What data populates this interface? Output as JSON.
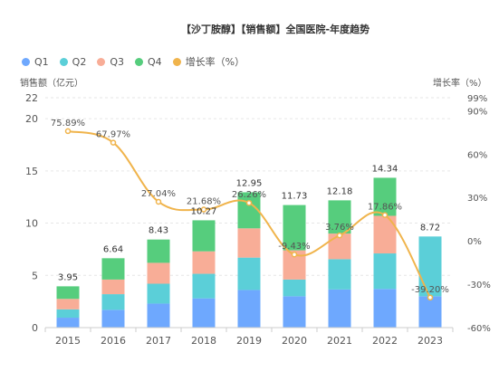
{
  "title": "【沙丁胺醇】【销售额】全国医院-年度趋势",
  "y_left_label": "销售额（亿元）",
  "y_right_label": "增长率（%）",
  "legend": [
    {
      "label": "Q1",
      "color": "#6ea8fe"
    },
    {
      "label": "Q2",
      "color": "#5bcfd8"
    },
    {
      "label": "Q3",
      "color": "#f8ad97"
    },
    {
      "label": "Q4",
      "color": "#56cd7d"
    },
    {
      "label": "增长率（%）",
      "color": "#f0b44c"
    }
  ],
  "chart_data": {
    "type": "bar",
    "stacked": true,
    "title": "【沙丁胺醇】【销售额】全国医院-年度趋势",
    "categories": [
      "2015",
      "2016",
      "2017",
      "2018",
      "2019",
      "2020",
      "2021",
      "2022",
      "2023"
    ],
    "series": [
      {
        "name": "Q1",
        "values": [
          0.95,
          1.7,
          2.3,
          2.8,
          3.6,
          3.0,
          3.65,
          3.7,
          3.0
        ]
      },
      {
        "name": "Q2",
        "values": [
          0.8,
          1.5,
          1.9,
          2.35,
          3.1,
          1.6,
          2.9,
          3.4,
          5.72
        ]
      },
      {
        "name": "Q3",
        "values": [
          1.0,
          1.4,
          2.0,
          2.15,
          2.8,
          2.8,
          2.45,
          3.6,
          0
        ]
      },
      {
        "name": "Q4",
        "values": [
          1.2,
          2.04,
          2.23,
          2.97,
          3.45,
          4.33,
          3.18,
          3.64,
          0
        ]
      }
    ],
    "totals": [
      3.95,
      6.64,
      8.43,
      10.27,
      12.95,
      11.73,
      12.18,
      14.34,
      8.72
    ],
    "totals_labels": [
      "3.95",
      "6.64",
      "8.43",
      "10.27",
      "12.95",
      "11.73",
      "12.18",
      "14.34",
      "8.72"
    ],
    "growth_series": {
      "name": "增长率（%）",
      "values": [
        75.89,
        67.97,
        27.04,
        21.68,
        26.26,
        -9.43,
        3.76,
        17.86,
        -39.2
      ],
      "labels": [
        "75.89%",
        "67.97%",
        "27.04%",
        "21.68%",
        "26.26%",
        "-9.43%",
        "3.76%",
        "17.86%",
        "-39.20%"
      ]
    },
    "ylabel_left": "销售额（亿元）",
    "ylabel_right": "增长率（%）",
    "ylim_left": [
      0,
      22
    ],
    "ylim_right": [
      -60,
      99
    ],
    "yticks_left": [
      0,
      5,
      10,
      15,
      20,
      22
    ],
    "yticks_right": [
      -60,
      -30,
      0,
      30,
      60,
      90,
      99
    ],
    "ytick_labels_right": [
      "-60%",
      "-30%",
      "0%",
      "30%",
      "60%",
      "90%",
      "99%"
    ],
    "colors": {
      "Q1": "#6ea8fe",
      "Q2": "#5bcfd8",
      "Q3": "#f8ad97",
      "Q4": "#56cd7d",
      "growth": "#f0b44c"
    },
    "grid": true,
    "legend_position": "top-left"
  }
}
